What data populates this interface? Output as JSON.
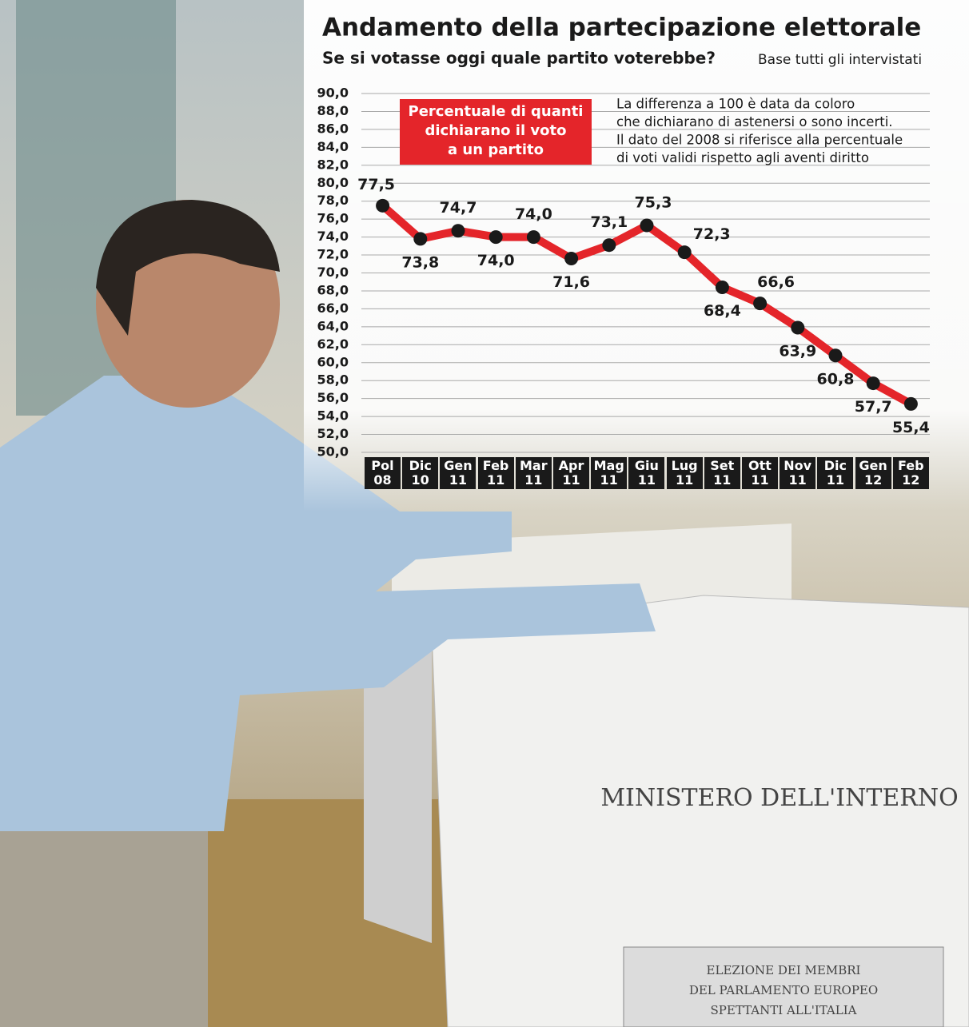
{
  "chart_data": {
    "type": "line",
    "title": "Andamento della partecipazione elettorale",
    "subtitle": "Se si votasse oggi quale partito voterebbe?",
    "base_note": "Base tutti gli intervistati",
    "annotation": [
      "La differenza a 100 è data da coloro",
      "che dichiarano di astenersi o sono incerti.",
      "Il dato del 2008 si riferisce alla percentuale",
      "di voti validi rispetto agli aventi diritto"
    ],
    "categories": [
      "Pol\n08",
      "Dic\n10",
      "Gen\n11",
      "Feb\n11",
      "Mar\n11",
      "Apr\n11",
      "Mag\n11",
      "Giu\n11",
      "Lug\n11",
      "Set\n11",
      "Ott\n11",
      "Nov\n11",
      "Dic\n11",
      "Gen\n12",
      "Feb\n12"
    ],
    "series": [
      {
        "name": "Percentuale di quanti\ndichiarano il voto\na un partito",
        "color": "#e4252a",
        "values": [
          77.5,
          73.8,
          74.7,
          74.0,
          74.0,
          71.6,
          73.1,
          75.3,
          72.3,
          68.4,
          66.6,
          63.9,
          60.8,
          57.7,
          55.4
        ],
        "value_labels": [
          "77,5",
          "73,8",
          "74,7",
          "74,0",
          "74,0",
          "71,6",
          "73,1",
          "75,3",
          "72,3",
          "68,4",
          "66,6",
          "63,9",
          "60,8",
          "57,7",
          "55,4"
        ]
      }
    ],
    "ylim": [
      50,
      90
    ],
    "yticks": [
      {
        "value": 50,
        "label": "50,0"
      },
      {
        "value": 52,
        "label": "52,0"
      },
      {
        "value": 54,
        "label": "54,0"
      },
      {
        "value": 56,
        "label": "56,0"
      },
      {
        "value": 58,
        "label": "58,0"
      },
      {
        "value": 60,
        "label": "60,0"
      },
      {
        "value": 62,
        "label": "62,0"
      },
      {
        "value": 64,
        "label": "64,0"
      },
      {
        "value": 66,
        "label": "66,0"
      },
      {
        "value": 68,
        "label": "68,0"
      },
      {
        "value": 70,
        "label": "70,0"
      },
      {
        "value": 72,
        "label": "72,0"
      },
      {
        "value": 74,
        "label": "74,0"
      },
      {
        "value": 76,
        "label": "76,0"
      },
      {
        "value": 78,
        "label": "78,0"
      },
      {
        "value": 80,
        "label": "80,0"
      },
      {
        "value": 82,
        "label": "82,0"
      },
      {
        "value": 84,
        "label": "84,0"
      },
      {
        "value": 86,
        "label": "86,0"
      },
      {
        "value": 88,
        "label": "88,0"
      },
      {
        "value": 90,
        "label": "90,0"
      }
    ],
    "grid": true
  },
  "photo": {
    "texts": [
      "MINISTERO DELL'INTERNO",
      "ELEZIONE DEI MEMBRI",
      "DEL PARLAMENTO EUROPEO",
      "SPETTANTI ALL'ITALIA"
    ]
  }
}
